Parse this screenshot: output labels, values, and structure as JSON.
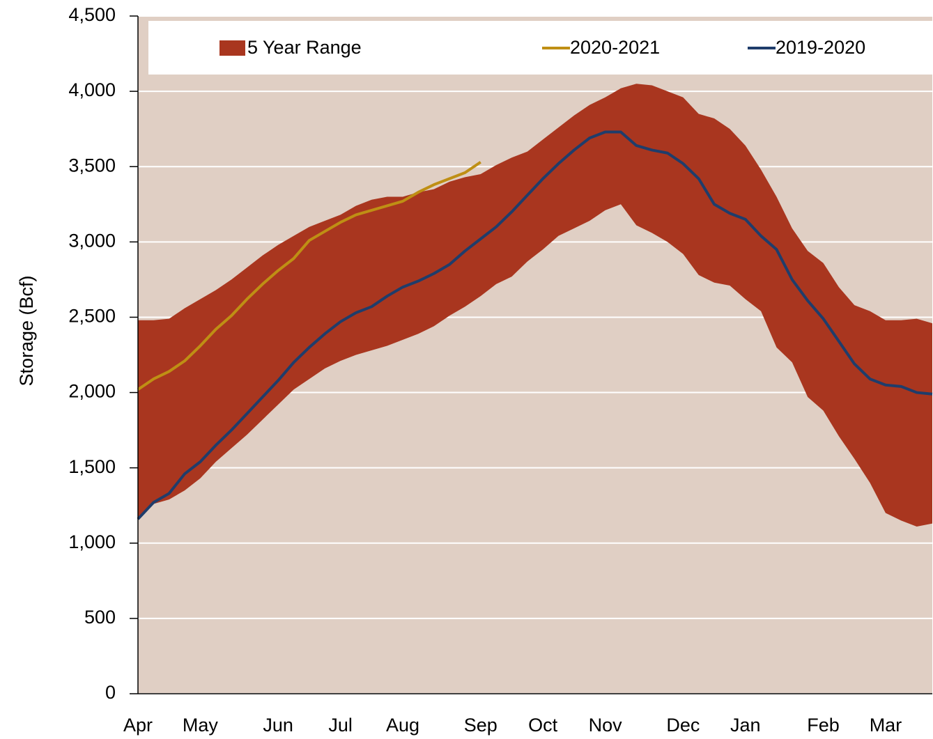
{
  "chart_data": {
    "type": "line",
    "ylabel": "Storage (Bcf)",
    "categories": [
      "Apr",
      null,
      null,
      null,
      "May",
      null,
      null,
      null,
      null,
      "Jun",
      null,
      null,
      null,
      "Jul",
      null,
      null,
      null,
      "Aug",
      null,
      null,
      null,
      null,
      "Sep",
      null,
      null,
      null,
      "Oct",
      null,
      null,
      null,
      "Nov",
      null,
      null,
      null,
      null,
      "Dec",
      null,
      null,
      null,
      "Jan",
      null,
      null,
      null,
      null,
      "Feb",
      null,
      null,
      null,
      "Mar",
      null,
      null,
      null
    ],
    "ylim": [
      0,
      4500
    ],
    "yticks": [
      0,
      500,
      {
        "value": 1000,
        "label": "1,000"
      },
      {
        "value": 1500,
        "label": "1,500"
      },
      {
        "value": 2000,
        "label": "2,000"
      },
      {
        "value": 2500,
        "label": "2,500"
      },
      {
        "value": 3000,
        "label": "3,000"
      },
      {
        "value": 3500,
        "label": "3,500"
      },
      {
        "value": 4000,
        "label": "4,000"
      },
      {
        "value": 4500,
        "label": "4,500"
      }
    ],
    "grid": true,
    "legend": "top",
    "background": "#e0cfc4",
    "series": [
      {
        "name": "5 Year Range",
        "color": "#a9361f",
        "high": [
          2480,
          2480,
          2490,
          2560,
          2620,
          2680,
          2750,
          2830,
          2910,
          2980,
          3040,
          3100,
          3140,
          3180,
          3240,
          3280,
          3300,
          3300,
          3330,
          3350,
          3400,
          3430,
          3450,
          3510,
          3560,
          3600,
          3680,
          3760,
          3840,
          3910,
          3960,
          4020,
          4050,
          4040,
          4000,
          3960,
          3850,
          3820,
          3750,
          3640,
          3480,
          3300,
          3090,
          2940,
          2860,
          2700,
          2580,
          2540,
          2480,
          2480,
          2490,
          2460
        ],
        "low": [
          1160,
          1260,
          1290,
          1350,
          1430,
          1540,
          1630,
          1720,
          1820,
          1920,
          2020,
          2090,
          2160,
          2210,
          2250,
          2280,
          2310,
          2350,
          2390,
          2440,
          2510,
          2570,
          2640,
          2720,
          2770,
          2870,
          2950,
          3040,
          3090,
          3140,
          3210,
          3250,
          3110,
          3060,
          3000,
          2920,
          2780,
          2730,
          2710,
          2620,
          2540,
          2300,
          2200,
          1970,
          1880,
          1710,
          1560,
          1400,
          1200,
          1150,
          1110,
          1130
        ]
      },
      {
        "name": "2020-2021",
        "color": "#bf8f14",
        "values": [
          2020,
          2090,
          2140,
          2210,
          2310,
          2420,
          2510,
          2620,
          2720,
          2810,
          2890,
          3010,
          3070,
          3130,
          3180,
          3210,
          3240,
          3270,
          3330,
          3380,
          3420,
          3460,
          3530,
          null,
          null,
          null,
          null,
          null,
          null,
          null,
          null,
          null,
          null,
          null,
          null,
          null,
          null,
          null,
          null,
          null,
          null,
          null,
          null,
          null,
          null,
          null,
          null,
          null,
          null,
          null,
          null,
          null
        ]
      },
      {
        "name": "2019-2020",
        "color": "#1f3d6b",
        "values": [
          1160,
          1270,
          1330,
          1460,
          1540,
          1650,
          1750,
          1860,
          1970,
          2080,
          2200,
          2300,
          2390,
          2470,
          2530,
          2570,
          2640,
          2700,
          2740,
          2790,
          2850,
          2940,
          3020,
          3100,
          3200,
          3310,
          3420,
          3520,
          3610,
          3690,
          3730,
          3730,
          3640,
          3610,
          3590,
          3520,
          3420,
          3250,
          3190,
          3150,
          3040,
          2950,
          2750,
          2610,
          2490,
          2340,
          2190,
          2090,
          2050,
          2040,
          2000,
          1990
        ]
      }
    ]
  }
}
